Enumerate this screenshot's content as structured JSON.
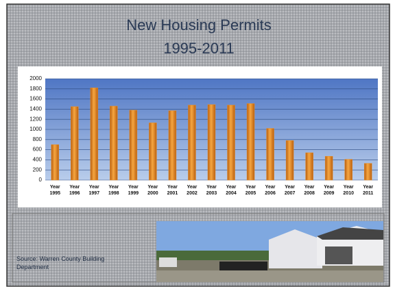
{
  "chart_data": {
    "type": "bar",
    "title": "New Housing Permits",
    "subtitle": "1995-2011",
    "categories": [
      "Year 1995",
      "Year 1996",
      "Year 1997",
      "Year 1998",
      "Year 1999",
      "Year 2000",
      "Year 2001",
      "Year 2002",
      "Year 2003",
      "Year 2004",
      "Year 2005",
      "Year 2006",
      "Year 2007",
      "Year 2008",
      "Year 2009",
      "Year 2010",
      "Year 2011"
    ],
    "values": [
      700,
      1450,
      1820,
      1460,
      1380,
      1130,
      1370,
      1480,
      1490,
      1480,
      1510,
      1020,
      780,
      540,
      470,
      410,
      330
    ],
    "color": "#e8902a",
    "ylim": [
      0,
      2000
    ],
    "yticks": [
      0,
      200,
      400,
      600,
      800,
      1000,
      1200,
      1400,
      1600,
      1800,
      2000
    ],
    "grid": true,
    "source": "Source: Warren County Building Department"
  }
}
